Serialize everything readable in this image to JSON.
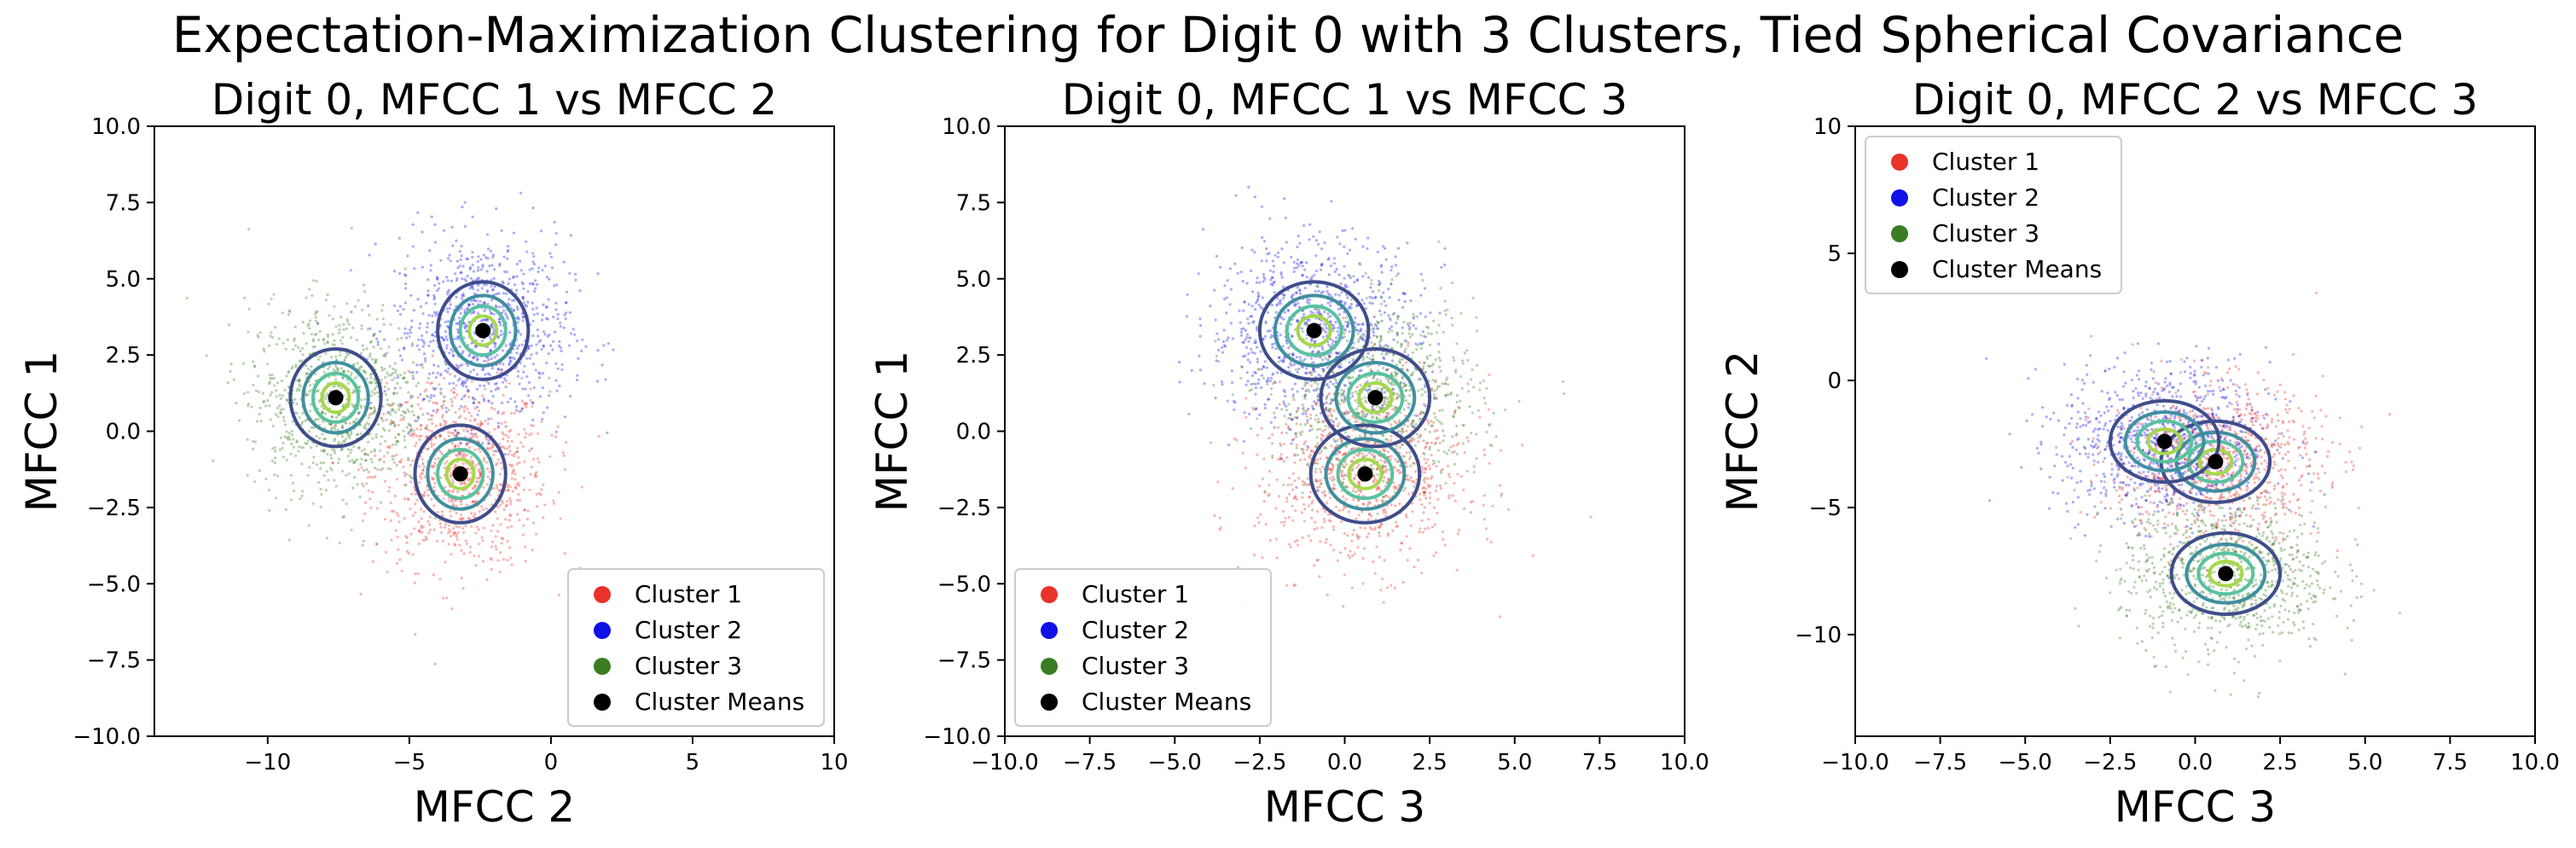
{
  "figure": {
    "suptitle": "Expectation-Maximization Clustering for Digit 0 with 3 Clusters, Tied Spherical Covariance"
  },
  "colors": {
    "cluster_1": "#e8322a",
    "cluster_2": "#1010e8",
    "cluster_3": "#3a7d23",
    "cluster_means": "#000000",
    "contour_outer": "#3f4d8a",
    "contour_mid": "#3f8fa0",
    "contour_inner": "#58c2a0",
    "contour_core": "#a6d84a"
  },
  "chart_data": [
    {
      "type": "scatter",
      "title": "Digit 0, MFCC 1 vs MFCC 2",
      "xlabel": "MFCC 2",
      "ylabel": "MFCC 1",
      "xlim": [
        -14,
        10
      ],
      "ylim": [
        -10,
        10
      ],
      "xticks": [
        -10,
        -5,
        0,
        5,
        10
      ],
      "xtick_labels": [
        "−10",
        "−5",
        "0",
        "5",
        "10"
      ],
      "yticks": [
        -10,
        -7.5,
        -5,
        -2.5,
        0,
        2.5,
        5,
        7.5,
        10
      ],
      "ytick_labels": [
        "−10.0",
        "−7.5",
        "−5.0",
        "−2.5",
        "0.0",
        "2.5",
        "5.0",
        "7.5",
        "10.0"
      ],
      "legend": [
        "Cluster 1",
        "Cluster 2",
        "Cluster 3",
        "Cluster Means"
      ],
      "legend_loc": "lower right",
      "means": [
        {
          "name": "Cluster 1",
          "x": -3.2,
          "y": -1.4
        },
        {
          "name": "Cluster 2",
          "x": -2.4,
          "y": 3.3
        },
        {
          "name": "Cluster 3",
          "x": -7.6,
          "y": 1.1
        }
      ],
      "contour_radius": 1.6
    },
    {
      "type": "scatter",
      "title": "Digit 0, MFCC 1 vs MFCC 3",
      "xlabel": "MFCC 3",
      "ylabel": "MFCC 1",
      "xlim": [
        -10,
        10
      ],
      "ylim": [
        -10,
        10
      ],
      "xticks": [
        -10,
        -7.5,
        -5,
        -2.5,
        0,
        2.5,
        5,
        7.5,
        10
      ],
      "xtick_labels": [
        "−10.0",
        "−7.5",
        "−5.0",
        "−2.5",
        "0.0",
        "2.5",
        "5.0",
        "7.5",
        "10.0"
      ],
      "yticks": [
        -10,
        -7.5,
        -5,
        -2.5,
        0,
        2.5,
        5,
        7.5,
        10
      ],
      "ytick_labels": [
        "−10.0",
        "−7.5",
        "−5.0",
        "−2.5",
        "0.0",
        "2.5",
        "5.0",
        "7.5",
        "10.0"
      ],
      "legend": [
        "Cluster 1",
        "Cluster 2",
        "Cluster 3",
        "Cluster Means"
      ],
      "legend_loc": "lower left",
      "means": [
        {
          "name": "Cluster 1",
          "x": 0.6,
          "y": -1.4
        },
        {
          "name": "Cluster 2",
          "x": -0.9,
          "y": 3.3
        },
        {
          "name": "Cluster 3",
          "x": 0.9,
          "y": 1.1
        }
      ],
      "contour_radius": 1.6
    },
    {
      "type": "scatter",
      "title": "Digit 0, MFCC 2 vs MFCC 3",
      "xlabel": "MFCC 3",
      "ylabel": "MFCC 2",
      "xlim": [
        -10,
        10
      ],
      "ylim": [
        -14,
        10
      ],
      "xticks": [
        -10,
        -7.5,
        -5,
        -2.5,
        0,
        2.5,
        5,
        7.5,
        10
      ],
      "xtick_labels": [
        "−10.0",
        "−7.5",
        "−5.0",
        "−2.5",
        "0.0",
        "2.5",
        "5.0",
        "7.5",
        "10.0"
      ],
      "yticks": [
        -10,
        -5,
        0,
        5,
        10
      ],
      "ytick_labels": [
        "−10",
        "−5",
        "0",
        "5",
        "10"
      ],
      "legend": [
        "Cluster 1",
        "Cluster 2",
        "Cluster 3",
        "Cluster Means"
      ],
      "legend_loc": "upper left",
      "means": [
        {
          "name": "Cluster 1",
          "x": 0.6,
          "y": -3.2
        },
        {
          "name": "Cluster 2",
          "x": -0.9,
          "y": -2.4
        },
        {
          "name": "Cluster 3",
          "x": 0.9,
          "y": -7.6
        }
      ],
      "contour_radius": 1.6
    }
  ]
}
